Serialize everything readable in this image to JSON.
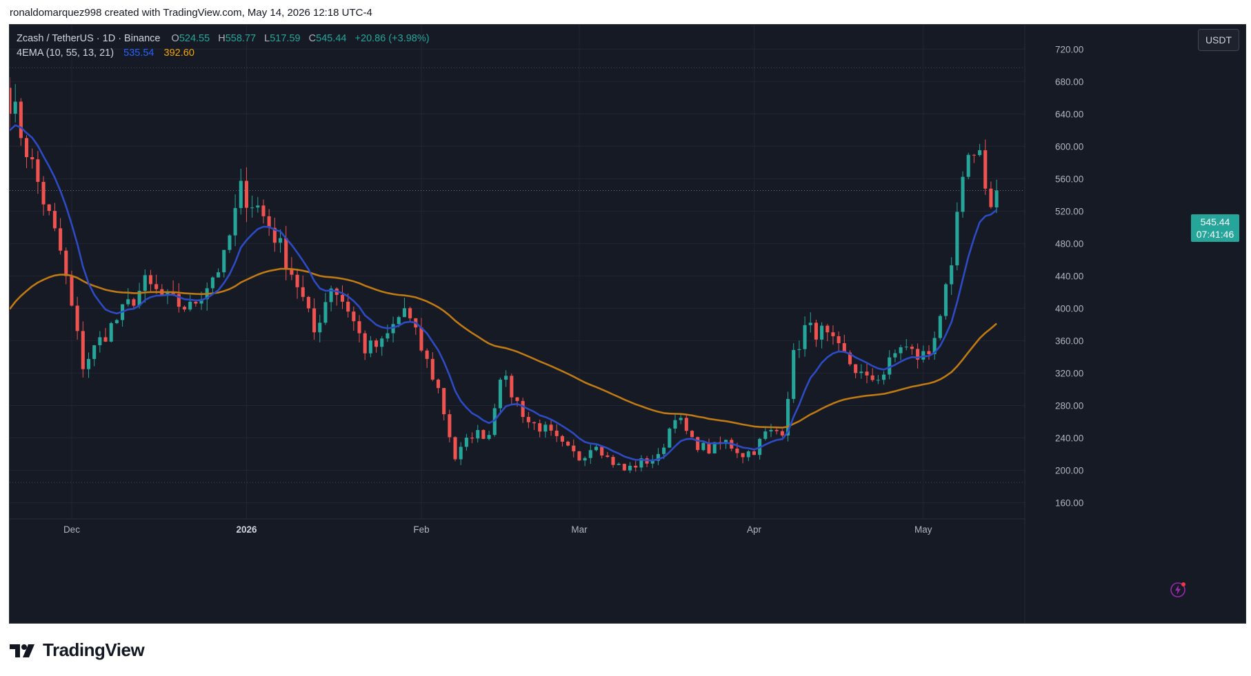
{
  "credit": "ronaldomarquez998 created with TradingView.com, May 14, 2026 12:18 UTC-4",
  "legend": {
    "symbol": "Zcash / TetherUS · 1D · Binance",
    "o_label": "O",
    "o_value": "524.55",
    "h_label": "H",
    "h_value": "558.77",
    "l_label": "L",
    "l_value": "517.59",
    "c_label": "C",
    "c_value": "545.44",
    "change": "+20.86 (+3.98%)",
    "indicator": "4EMA (10, 55, 13, 21)",
    "ema_fast_value": "535.54",
    "ema_slow_value": "392.60"
  },
  "currency_button": "USDT",
  "price_tag": {
    "price": "545.44",
    "countdown": "07:41:46"
  },
  "logo_text": "TradingView",
  "colors": {
    "background": "#161a25",
    "grid": "#232632",
    "up": "#26a69a",
    "down": "#ef5350",
    "ema_fast": "#2e4bc6",
    "ema_slow": "#c07a14",
    "axis_text": "#b2b5be"
  },
  "chart_data": {
    "type": "candlestick",
    "y_ticks": [
      "720.00",
      "680.00",
      "640.00",
      "600.00",
      "560.00",
      "520.00",
      "480.00",
      "440.00",
      "400.00",
      "360.00",
      "320.00",
      "280.00",
      "240.00",
      "200.00",
      "160.00"
    ],
    "x_ticks": [
      "Dec",
      "2026",
      "Feb",
      "Mar",
      "Apr",
      "May"
    ],
    "bold_x_ticks": [
      "2026"
    ],
    "ylim": [
      140,
      750
    ],
    "x_range": [
      "2025-11-20",
      "2026-05-19"
    ],
    "last_price": 545.44,
    "horizontal_dotted_levels": [
      697,
      185
    ],
    "series": [
      {
        "name": "EMA 10",
        "color": "#2e4bc6"
      },
      {
        "name": "EMA 55",
        "color": "#c07a14"
      }
    ],
    "keypoints": [
      [
        "2025-11-20",
        660
      ],
      [
        "2025-11-25",
        555
      ],
      [
        "2025-11-29",
        470
      ],
      [
        "2025-12-01",
        400
      ],
      [
        "2025-12-03",
        330
      ],
      [
        "2025-12-06",
        360
      ],
      [
        "2025-12-10",
        395
      ],
      [
        "2025-12-14",
        430
      ],
      [
        "2025-12-18",
        410
      ],
      [
        "2025-12-22",
        400
      ],
      [
        "2025-12-25",
        430
      ],
      [
        "2025-12-28",
        460
      ],
      [
        "2025-12-31",
        545
      ],
      [
        "2026-01-03",
        525
      ],
      [
        "2026-01-06",
        490
      ],
      [
        "2026-01-10",
        430
      ],
      [
        "2026-01-13",
        370
      ],
      [
        "2026-01-16",
        430
      ],
      [
        "2026-01-19",
        400
      ],
      [
        "2026-01-22",
        350
      ],
      [
        "2026-01-25",
        355
      ],
      [
        "2026-01-29",
        400
      ],
      [
        "2026-02-01",
        350
      ],
      [
        "2026-02-04",
        300
      ],
      [
        "2026-02-07",
        215
      ],
      [
        "2026-02-10",
        245
      ],
      [
        "2026-02-13",
        245
      ],
      [
        "2026-02-15",
        320
      ],
      [
        "2026-02-17",
        295
      ],
      [
        "2026-02-20",
        260
      ],
      [
        "2026-02-23",
        250
      ],
      [
        "2026-02-26",
        230
      ],
      [
        "2026-03-01",
        215
      ],
      [
        "2026-03-04",
        235
      ],
      [
        "2026-03-06",
        215
      ],
      [
        "2026-03-09",
        200
      ],
      [
        "2026-03-12",
        210
      ],
      [
        "2026-03-15",
        215
      ],
      [
        "2026-03-18",
        270
      ],
      [
        "2026-03-21",
        235
      ],
      [
        "2026-03-24",
        225
      ],
      [
        "2026-03-27",
        235
      ],
      [
        "2026-03-30",
        220
      ],
      [
        "2026-04-01",
        225
      ],
      [
        "2026-04-03",
        245
      ],
      [
        "2026-04-06",
        250
      ],
      [
        "2026-04-08",
        340
      ],
      [
        "2026-04-10",
        375
      ],
      [
        "2026-04-13",
        370
      ],
      [
        "2026-04-17",
        340
      ],
      [
        "2026-04-21",
        310
      ],
      [
        "2026-04-24",
        320
      ],
      [
        "2026-04-27",
        355
      ],
      [
        "2026-04-30",
        340
      ],
      [
        "2026-05-02",
        345
      ],
      [
        "2026-05-04",
        395
      ],
      [
        "2026-05-06",
        440
      ],
      [
        "2026-05-07",
        515
      ],
      [
        "2026-05-08",
        550
      ],
      [
        "2026-05-10",
        600
      ],
      [
        "2026-05-11",
        590
      ],
      [
        "2026-05-12",
        560
      ],
      [
        "2026-05-13",
        525
      ],
      [
        "2026-05-14",
        545.44
      ]
    ]
  }
}
